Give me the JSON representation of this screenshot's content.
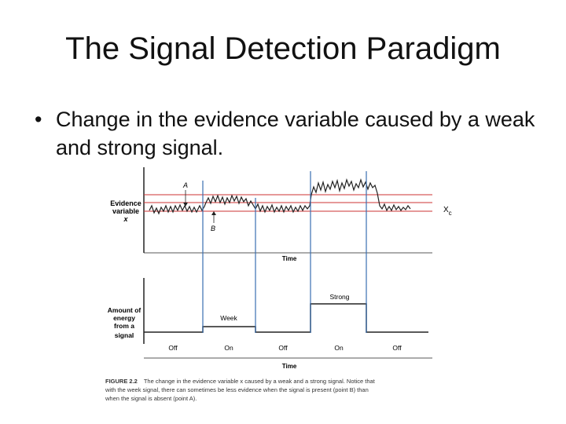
{
  "slide": {
    "title": "The Signal Detection Paradigm",
    "bullet_marker": "•",
    "bullet": "Change in the evidence variable caused by a weak and strong signal."
  },
  "figure": {
    "top_panel": {
      "ylabel_lines": [
        "Evidence",
        "variable",
        "x"
      ],
      "xlabel": "Time",
      "point_a": "A",
      "point_b": "B",
      "criterion_label": "X",
      "criterion_subscript": "c"
    },
    "bottom_panel": {
      "ylabel_lines": [
        "Amount of",
        "energy",
        "from a",
        "signal"
      ],
      "xlabel": "Time",
      "weak_label": "Week",
      "strong_label": "Strong",
      "segment_labels": [
        "Off",
        "On",
        "Off",
        "On",
        "Off"
      ]
    },
    "caption": {
      "figure_number": "FIGURE 2.2",
      "lines": [
        "The change in the evidence variable x caused by a weak and a strong signal. Notice that",
        "with the week signal, there can sometimes be less evidence when the signal is present (point B) than",
        "when the signal is absent (point A)."
      ]
    },
    "colors": {
      "criterion": "#cc3333",
      "dividers": "#3a6fb0",
      "trace": "#222222"
    }
  }
}
